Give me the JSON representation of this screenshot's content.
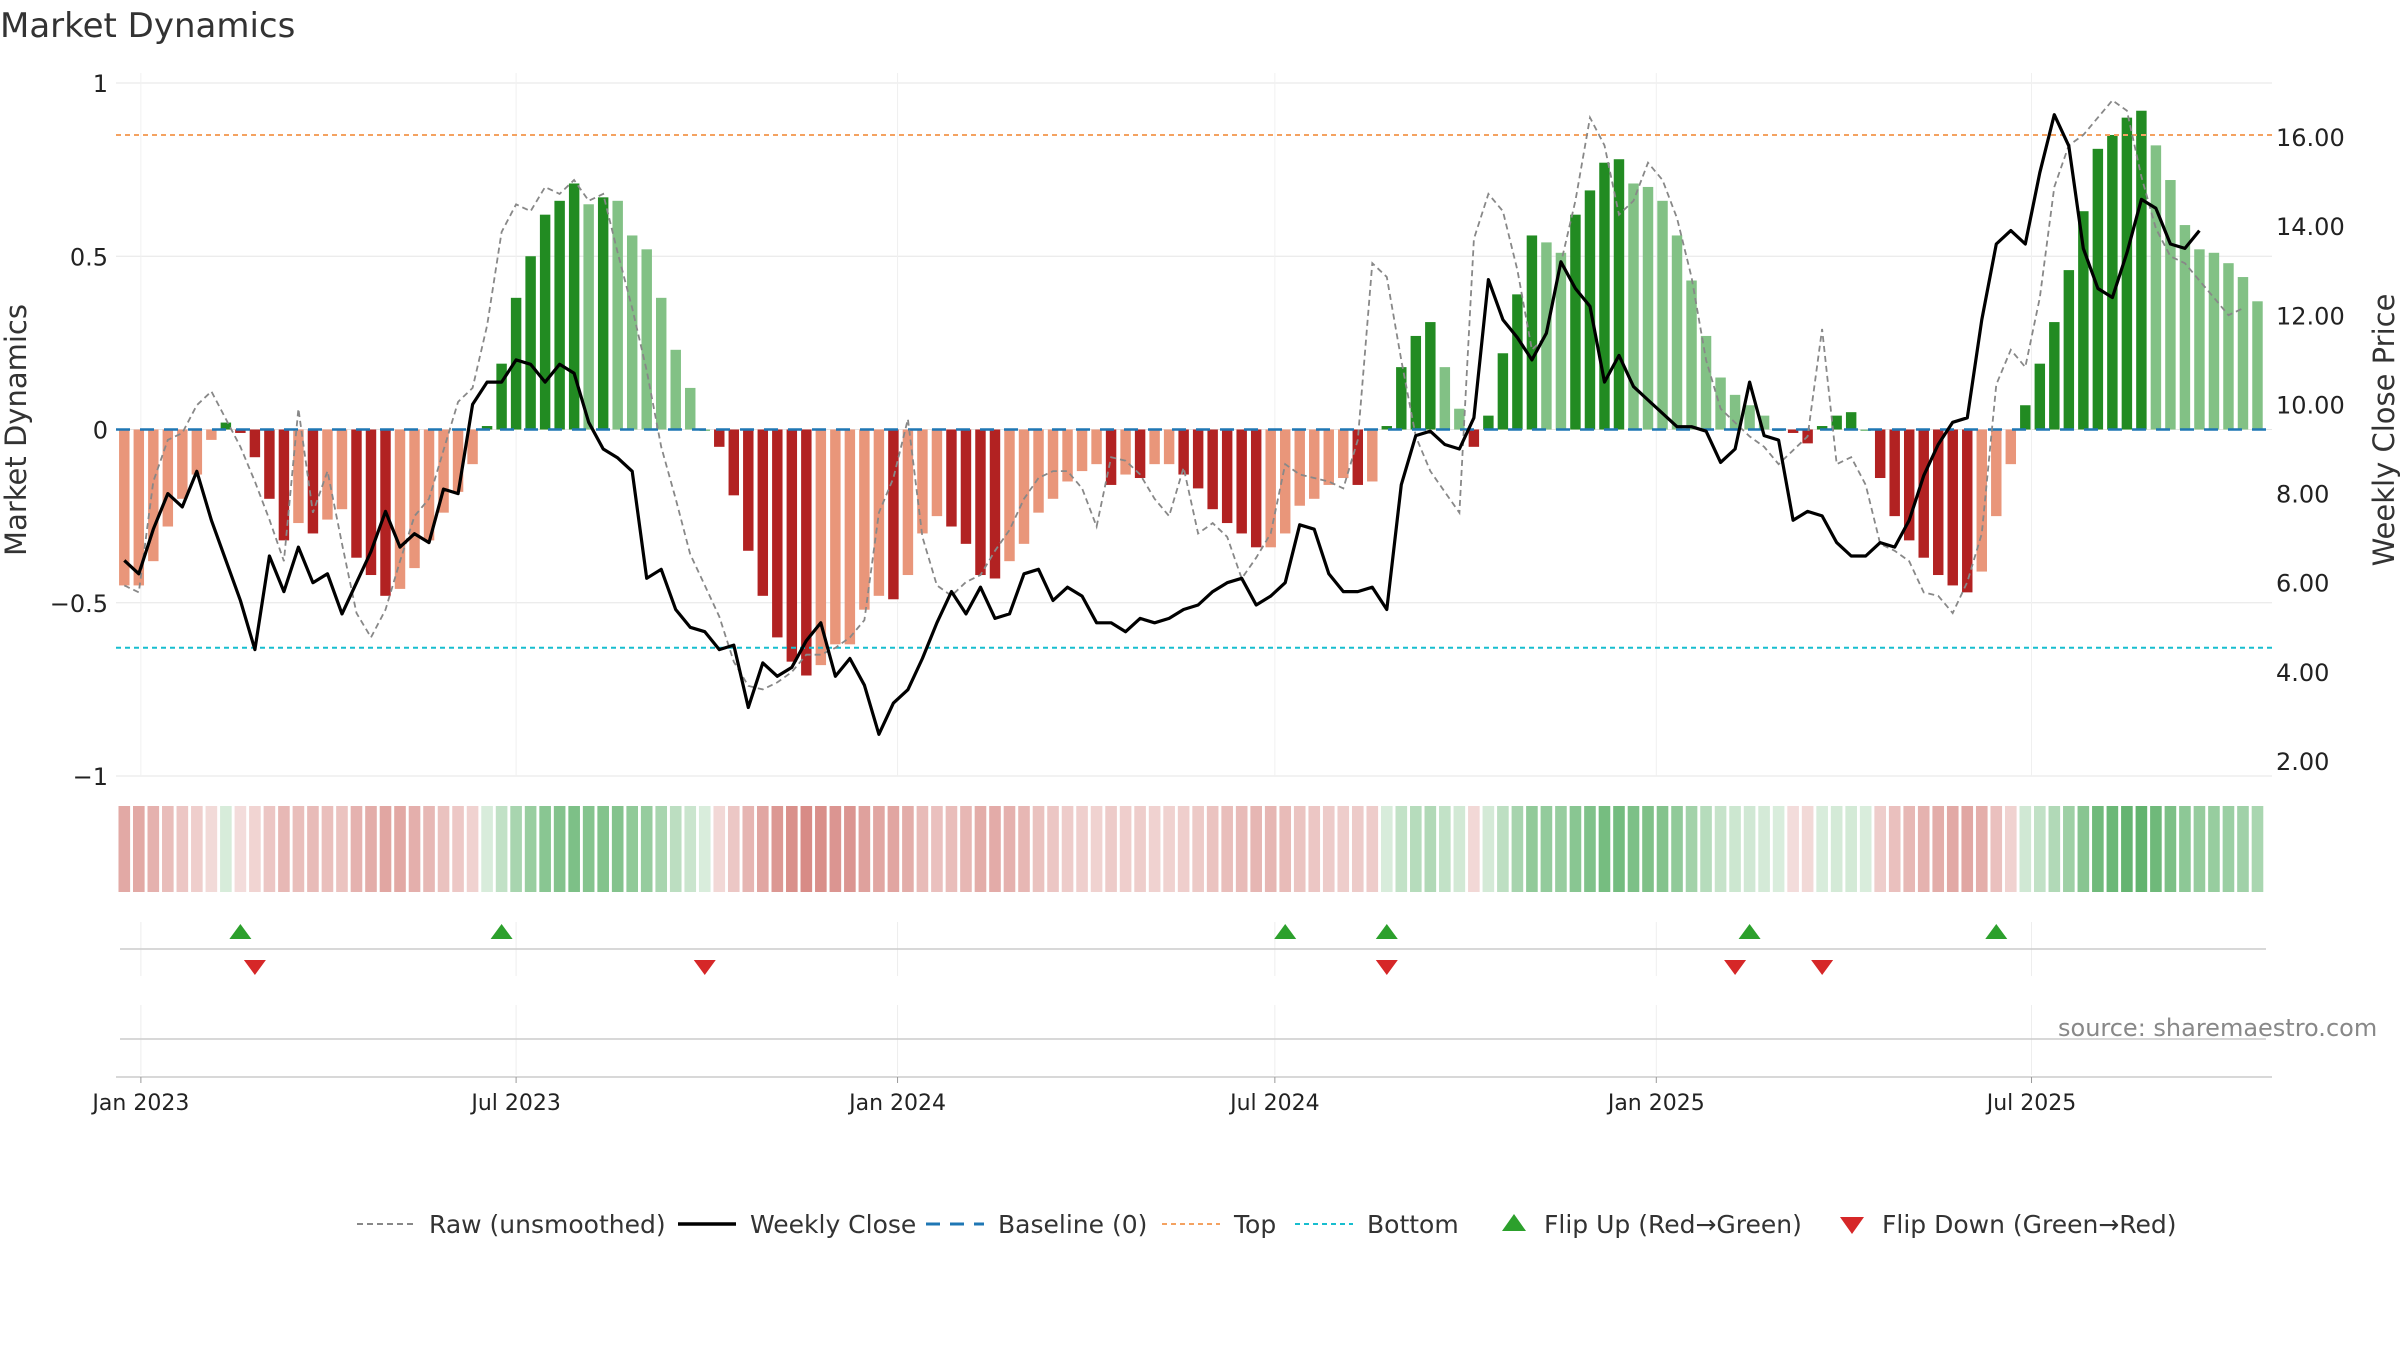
{
  "title": "Market Dynamics",
  "source": "source: sharemaestro.com",
  "chart_data": {
    "type": "bar",
    "title": "Market Dynamics",
    "ylabel_left": "Market Dynamics",
    "ylabel_right": "Weekly Close Price",
    "ylim_left": [
      -1,
      1
    ],
    "ylim_right": [
      1.2,
      17.2
    ],
    "left_ticks": [
      {
        "value": 1,
        "label": "1"
      },
      {
        "value": 0.5,
        "label": "0.5"
      },
      {
        "value": 0,
        "label": "0"
      },
      {
        "value": -0.5,
        "label": "−0.5"
      },
      {
        "value": -1,
        "label": "−1"
      }
    ],
    "right_ticks": [
      {
        "value": 16,
        "label": "16.00"
      },
      {
        "value": 14,
        "label": "14.00"
      },
      {
        "value": 12,
        "label": "12.00"
      },
      {
        "value": 10,
        "label": "10.00"
      },
      {
        "value": 8,
        "label": "8.00"
      },
      {
        "value": 6,
        "label": "6.00"
      },
      {
        "value": 4,
        "label": "4.00"
      },
      {
        "value": 2,
        "label": "2.00"
      }
    ],
    "x_ticks": [
      {
        "date": "2023-01-01",
        "label": "Jan 2023"
      },
      {
        "date": "2023-07-01",
        "label": "Jul 2023"
      },
      {
        "date": "2024-01-01",
        "label": "Jan 2024"
      },
      {
        "date": "2024-07-01",
        "label": "Jul 2024"
      },
      {
        "date": "2025-01-01",
        "label": "Jan 2025"
      },
      {
        "date": "2025-07-01",
        "label": "Jul 2025"
      }
    ],
    "x_range": [
      "2022-12-20",
      "2025-10-25"
    ],
    "top_line": 0.85,
    "bottom_line": -0.63,
    "grid": true,
    "legend_placement": "bottom",
    "colors": {
      "strong_up": "#228b22",
      "weak_up": "#82c185",
      "strong_down": "#b22222",
      "weak_down": "#e9967a",
      "close": "#000000",
      "raw": "#888888",
      "baseline": "#1f77b4",
      "top": "#f4a261",
      "bottom": "#17becf",
      "flip_up": "#2ca02c",
      "flip_down": "#d62728"
    },
    "series": [
      {
        "name": "Market Dynamics",
        "start_date": "2022-12-24",
        "interval_days": 7,
        "values": [
          -0.45,
          -0.45,
          -0.38,
          -0.28,
          -0.2,
          -0.13,
          -0.03,
          0.02,
          -0.01,
          -0.08,
          -0.2,
          -0.32,
          -0.27,
          -0.3,
          -0.26,
          -0.23,
          -0.37,
          -0.42,
          -0.48,
          -0.46,
          -0.4,
          -0.32,
          -0.24,
          -0.18,
          -0.1,
          0.01,
          0.19,
          0.38,
          0.5,
          0.62,
          0.66,
          0.71,
          0.65,
          0.67,
          0.66,
          0.56,
          0.52,
          0.38,
          0.23,
          0.12,
          0,
          -0.05,
          -0.19,
          -0.35,
          -0.48,
          -0.6,
          -0.67,
          -0.71,
          -0.68,
          -0.62,
          -0.62,
          -0.52,
          -0.48,
          -0.49,
          -0.42,
          -0.3,
          -0.25,
          -0.28,
          -0.33,
          -0.42,
          -0.43,
          -0.38,
          -0.33,
          -0.24,
          -0.2,
          -0.15,
          -0.12,
          -0.1,
          -0.16,
          -0.13,
          -0.14,
          -0.1,
          -0.1,
          -0.13,
          -0.17,
          -0.23,
          -0.27,
          -0.3,
          -0.34,
          -0.34,
          -0.3,
          -0.22,
          -0.2,
          -0.16,
          -0.14,
          -0.16,
          -0.15,
          0.01,
          0.18,
          0.27,
          0.31,
          0.18,
          0.06,
          -0.05,
          0.04,
          0.22,
          0.39,
          0.56,
          0.54,
          0.51,
          0.62,
          0.69,
          0.77,
          0.78,
          0.71,
          0.7,
          0.66,
          0.56,
          0.43,
          0.27,
          0.15,
          0.1,
          0.07,
          0.04,
          0,
          -0.01,
          -0.04,
          0.01,
          0.04,
          0.05,
          0,
          -0.14,
          -0.25,
          -0.32,
          -0.37,
          -0.42,
          -0.45,
          -0.47,
          -0.41,
          -0.25,
          -0.1,
          0.07,
          0.19,
          0.31,
          0.46,
          0.63,
          0.81,
          0.85,
          0.9,
          0.92,
          0.82,
          0.72,
          0.59,
          0.52,
          0.51,
          0.48,
          0.44,
          0.37
        ]
      },
      {
        "name": "Raw (unsmoothed)",
        "start_date": "2022-12-24",
        "interval_days": 7,
        "values": [
          -0.45,
          -0.47,
          -0.15,
          -0.03,
          -0.01,
          0.07,
          0.11,
          0.03,
          -0.05,
          -0.15,
          -0.26,
          -0.38,
          0.06,
          -0.24,
          -0.12,
          -0.33,
          -0.53,
          -0.6,
          -0.52,
          -0.38,
          -0.25,
          -0.2,
          -0.06,
          0.08,
          0.12,
          0.3,
          0.57,
          0.65,
          0.63,
          0.7,
          0.68,
          0.72,
          0.66,
          0.68,
          0.51,
          0.35,
          0.17,
          -0.05,
          -0.2,
          -0.36,
          -0.45,
          -0.54,
          -0.67,
          -0.74,
          -0.75,
          -0.73,
          -0.7,
          -0.65,
          -0.65,
          -0.63,
          -0.6,
          -0.55,
          -0.24,
          -0.14,
          0.03,
          -0.31,
          -0.45,
          -0.48,
          -0.44,
          -0.42,
          -0.35,
          -0.29,
          -0.2,
          -0.14,
          -0.12,
          -0.12,
          -0.17,
          -0.28,
          -0.08,
          -0.09,
          -0.13,
          -0.2,
          -0.25,
          -0.11,
          -0.3,
          -0.27,
          -0.31,
          -0.43,
          -0.37,
          -0.3,
          -0.1,
          -0.13,
          -0.14,
          -0.15,
          -0.17,
          -0.03,
          0.48,
          0.44,
          0.2,
          -0.02,
          -0.12,
          -0.18,
          -0.24,
          0.55,
          0.68,
          0.63,
          0.46,
          0.23,
          0.27,
          0.48,
          0.66,
          0.9,
          0.82,
          0.62,
          0.66,
          0.77,
          0.72,
          0.61,
          0.44,
          0.2,
          0.06,
          0.02,
          -0.02,
          -0.05,
          -0.1,
          -0.06,
          -0.02,
          0.29,
          -0.1,
          -0.08,
          -0.16,
          -0.33,
          -0.35,
          -0.38,
          -0.47,
          -0.48,
          -0.53,
          -0.44,
          -0.3,
          0.13,
          0.23,
          0.18,
          0.38,
          0.7,
          0.82,
          0.85,
          0.9,
          0.95,
          0.92,
          0.73,
          0.58,
          0.5,
          0.48,
          0.43,
          0.38,
          0.33,
          0.35
        ]
      },
      {
        "name": "Weekly Close",
        "start_date": "2022-12-24",
        "interval_days": 7,
        "values": [
          6.5,
          6.2,
          7.2,
          8,
          7.7,
          8.5,
          7.4,
          6.5,
          5.6,
          4.5,
          6.6,
          5.8,
          6.8,
          6,
          6.2,
          5.3,
          6,
          6.7,
          7.6,
          6.8,
          7.1,
          6.9,
          8.1,
          8,
          10,
          10.5,
          10.5,
          11,
          10.9,
          10.5,
          10.9,
          10.7,
          9.6,
          9,
          8.8,
          8.5,
          6.1,
          6.3,
          5.4,
          5,
          4.9,
          4.5,
          4.6,
          3.2,
          4.2,
          3.9,
          4.1,
          4.7,
          5.1,
          3.9,
          4.3,
          3.7,
          2.6,
          3.3,
          3.6,
          4.3,
          5.1,
          5.8,
          5.3,
          5.9,
          5.2,
          5.3,
          6.2,
          6.3,
          5.6,
          5.9,
          5.7,
          5.1,
          5.1,
          4.9,
          5.2,
          5.1,
          5.2,
          5.4,
          5.5,
          5.8,
          6,
          6.1,
          5.5,
          5.7,
          6,
          7.3,
          7.2,
          6.2,
          5.8,
          5.8,
          5.9,
          5.4,
          8.2,
          9.3,
          9.4,
          9.1,
          9,
          9.7,
          12.8,
          11.9,
          11.5,
          11,
          11.6,
          13.2,
          12.6,
          12.2,
          10.5,
          11.1,
          10.4,
          10.1,
          9.8,
          9.5,
          9.5,
          9.4,
          8.7,
          9,
          10.5,
          9.3,
          9.2,
          7.4,
          7.6,
          7.5,
          6.9,
          6.6,
          6.6,
          6.9,
          6.8,
          7.4,
          8.4,
          9.1,
          9.6,
          9.7,
          11.9,
          13.6,
          13.9,
          13.6,
          15.2,
          16.5,
          15.8,
          13.5,
          12.6,
          12.4,
          13.4,
          14.6,
          14.4,
          13.6,
          13.5,
          13.9
        ]
      }
    ],
    "flips": {
      "up_dates": [
        "2023-02-18",
        "2023-06-24",
        "2024-07-06",
        "2024-08-24",
        "2025-02-15",
        "2025-06-14"
      ],
      "down_dates": [
        "2023-02-25",
        "2023-09-30",
        "2024-08-24",
        "2025-02-08",
        "2025-03-22"
      ]
    },
    "legend": [
      {
        "label": "Raw (unsmoothed)",
        "style": "dashed-gray"
      },
      {
        "label": "Weekly Close",
        "style": "solid-black"
      },
      {
        "label": "Baseline (0)",
        "style": "dashed-blue"
      },
      {
        "label": "Top",
        "style": "dotted-orange"
      },
      {
        "label": "Bottom",
        "style": "dotted-cyan"
      },
      {
        "label": "Flip Up (Red→Green)",
        "style": "triangle-up-green"
      },
      {
        "label": "Flip Down (Green→Red)",
        "style": "triangle-down-red"
      }
    ]
  }
}
